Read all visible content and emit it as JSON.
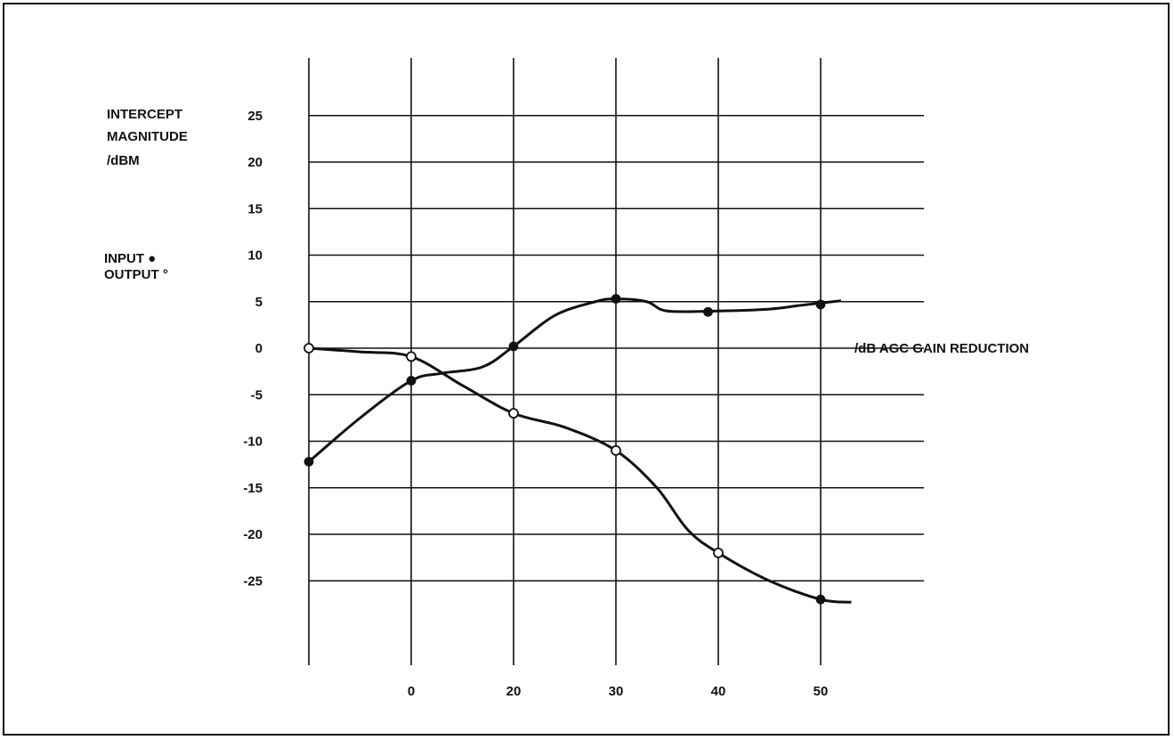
{
  "chart_data": {
    "type": "line",
    "ylabel_lines": [
      "INTERCEPT",
      "MAGNITUDE",
      "/dBM"
    ],
    "xlabel": "/dB AGC GAIN REDUCTION",
    "legend": [
      {
        "label": "INPUT",
        "marker": "●",
        "series": "input"
      },
      {
        "label": "OUTPUT",
        "marker": "°",
        "series": "output"
      }
    ],
    "x_ticks": [
      {
        "pos": -10,
        "label": ""
      },
      {
        "pos": 0,
        "label": "0"
      },
      {
        "pos": 10,
        "label": "20"
      },
      {
        "pos": 20,
        "label": "30"
      },
      {
        "pos": 30,
        "label": "40"
      },
      {
        "pos": 40,
        "label": "50"
      }
    ],
    "y_ticks": [
      25,
      20,
      15,
      10,
      5,
      0,
      -5,
      -10,
      -15,
      -20,
      -25
    ],
    "xlim": [
      -10,
      50
    ],
    "ylim": [
      -35,
      30
    ],
    "series": [
      {
        "id": "input",
        "curve": [
          [
            -10,
            -12.2
          ],
          [
            -5,
            -7.5
          ],
          [
            0,
            -3.5
          ],
          [
            3,
            -2.7
          ],
          [
            7,
            -2
          ],
          [
            10,
            0.2
          ],
          [
            14,
            3.5
          ],
          [
            18,
            5
          ],
          [
            20,
            5.3
          ],
          [
            23,
            5
          ],
          [
            25,
            4
          ],
          [
            30,
            4
          ],
          [
            35,
            4.2
          ],
          [
            38,
            4.6
          ],
          [
            42,
            5.1
          ]
        ],
        "points": [
          [
            -10,
            -12.2
          ],
          [
            0,
            -3.5
          ],
          [
            10,
            0.2
          ],
          [
            20,
            5.3
          ],
          [
            29,
            3.9
          ],
          [
            40,
            4.7
          ]
        ],
        "markers": [
          "filled",
          "filled",
          "filled",
          "filled",
          "filled",
          "filled"
        ]
      },
      {
        "id": "output",
        "curve": [
          [
            -10,
            0
          ],
          [
            -5,
            -0.4
          ],
          [
            0,
            -0.9
          ],
          [
            5,
            -4
          ],
          [
            10,
            -7
          ],
          [
            15,
            -8.5
          ],
          [
            20,
            -11
          ],
          [
            24,
            -15
          ],
          [
            27,
            -19.5
          ],
          [
            30,
            -22
          ],
          [
            35,
            -25
          ],
          [
            40,
            -27
          ],
          [
            43,
            -27.3
          ]
        ],
        "points": [
          [
            -10,
            0
          ],
          [
            0,
            -0.9
          ],
          [
            10,
            -7
          ],
          [
            20,
            -11
          ],
          [
            30,
            -22
          ],
          [
            40,
            -27
          ]
        ],
        "markers": [
          "open",
          "open",
          "open",
          "open",
          "open",
          "filled"
        ]
      }
    ]
  }
}
